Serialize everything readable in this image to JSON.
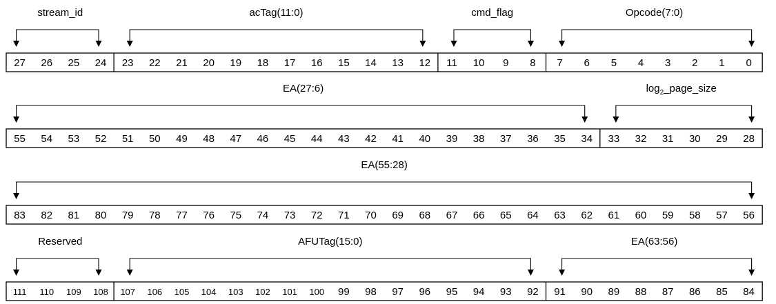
{
  "rows": [
    {
      "bits": [
        27,
        26,
        25,
        24,
        23,
        22,
        21,
        20,
        19,
        18,
        17,
        16,
        15,
        14,
        13,
        12,
        11,
        10,
        9,
        8,
        7,
        6,
        5,
        4,
        3,
        2,
        1,
        0
      ],
      "fields": [
        {
          "name": "stream_id",
          "from": 27,
          "to": 24
        },
        {
          "name": "acTag(11:0)",
          "from": 23,
          "to": 12
        },
        {
          "name": "cmd_flag",
          "from": 11,
          "to": 8
        },
        {
          "name": "Opcode(7:0)",
          "from": 7,
          "to": 0
        }
      ]
    },
    {
      "bits": [
        55,
        54,
        53,
        52,
        51,
        50,
        49,
        48,
        47,
        46,
        45,
        44,
        43,
        42,
        41,
        40,
        39,
        38,
        37,
        36,
        35,
        34,
        33,
        32,
        31,
        30,
        29,
        28
      ],
      "fields": [
        {
          "name": "EA(27:6)",
          "from": 55,
          "to": 34
        },
        {
          "name": "log",
          "sub": "2",
          "suffix": "_page_size",
          "from": 33,
          "to": 28
        }
      ]
    },
    {
      "bits": [
        83,
        82,
        81,
        80,
        79,
        78,
        77,
        76,
        75,
        74,
        73,
        72,
        71,
        70,
        69,
        68,
        67,
        66,
        65,
        64,
        63,
        62,
        61,
        60,
        59,
        58,
        57,
        56
      ],
      "fields": [
        {
          "name": "EA(55:28)",
          "from": 83,
          "to": 56
        }
      ]
    },
    {
      "bits": [
        111,
        110,
        109,
        108,
        107,
        106,
        105,
        104,
        103,
        102,
        101,
        100,
        99,
        98,
        97,
        96,
        95,
        94,
        93,
        92,
        91,
        90,
        89,
        88,
        87,
        86,
        85,
        84
      ],
      "fields": [
        {
          "name": "Reserved",
          "from": 111,
          "to": 108
        },
        {
          "name": "AFUTag(15:0)",
          "from": 107,
          "to": 92
        },
        {
          "name": "EA(63:56)",
          "from": 91,
          "to": 84
        }
      ]
    }
  ]
}
